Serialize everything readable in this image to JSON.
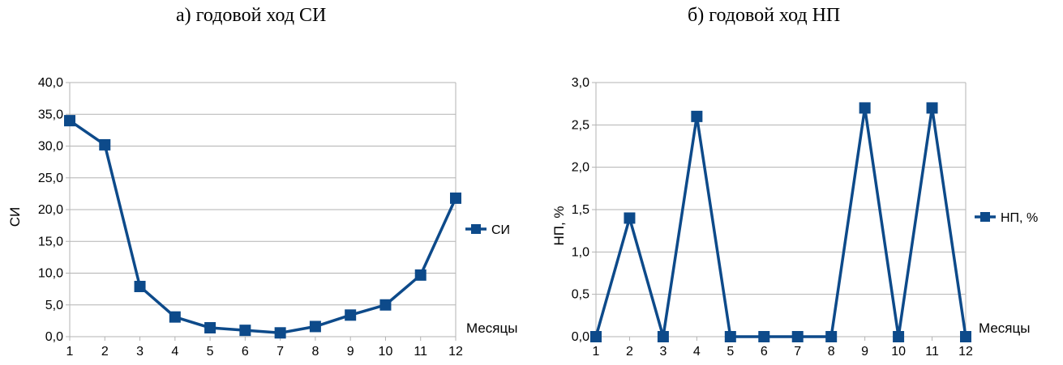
{
  "chart_data": [
    {
      "type": "line",
      "title": "а) годовой ход СИ",
      "xlabel": "Месяцы",
      "ylabel": "СИ",
      "categories": [
        "1",
        "2",
        "3",
        "4",
        "5",
        "6",
        "7",
        "8",
        "9",
        "10",
        "11",
        "12"
      ],
      "series": [
        {
          "name": "СИ",
          "values": [
            34.0,
            30.2,
            7.9,
            3.1,
            1.4,
            1.0,
            0.6,
            1.6,
            3.4,
            5.0,
            9.7,
            21.8
          ]
        }
      ],
      "ylim": [
        0,
        40
      ],
      "ytick_labels": [
        "0,0",
        "5,0",
        "10,0",
        "15,0",
        "20,0",
        "25,0",
        "30,0",
        "35,0",
        "40,0"
      ],
      "grid": true,
      "legend": "right",
      "line_color": "#0d4a8a"
    },
    {
      "type": "line",
      "title": "б) годовой ход НП",
      "xlabel": "Месяцы",
      "ylabel": "НП, %",
      "categories": [
        "1",
        "2",
        "3",
        "4",
        "5",
        "6",
        "7",
        "8",
        "9",
        "10",
        "11",
        "12"
      ],
      "series": [
        {
          "name": "НП, %",
          "values": [
            0,
            1.4,
            0,
            2.6,
            0,
            0,
            0,
            0,
            2.7,
            0,
            2.7,
            0
          ]
        }
      ],
      "ylim": [
        0,
        3
      ],
      "ytick_labels": [
        "0,0",
        "0,5",
        "1,0",
        "1,5",
        "2,0",
        "2,5",
        "3,0"
      ],
      "grid": true,
      "legend": "right",
      "line_color": "#0d4a8a"
    }
  ]
}
